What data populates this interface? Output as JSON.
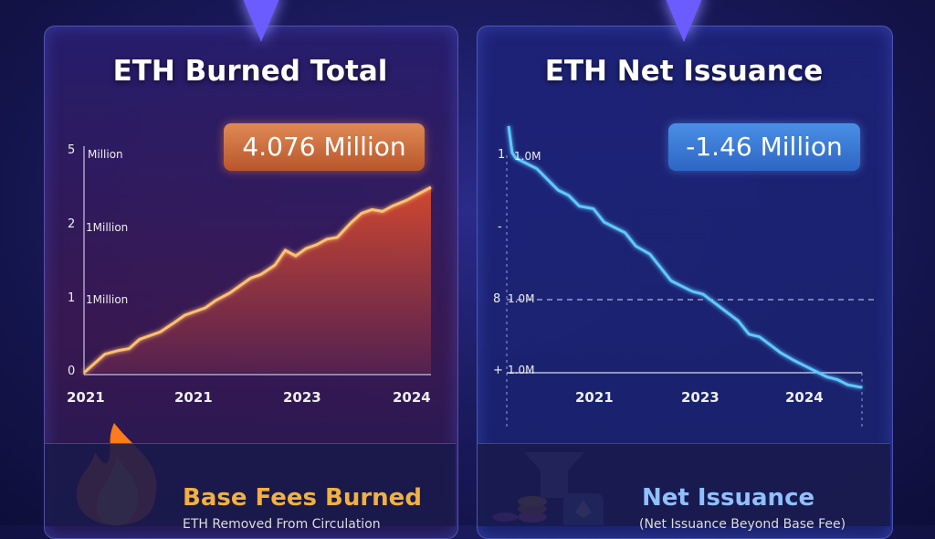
{
  "chart_data": [
    {
      "type": "area",
      "title": "ETH Burned Total",
      "highlight_value": "4.076 Million",
      "y_tick_labels": [
        {
          "num": "5",
          "text": "Million"
        },
        {
          "num": "2",
          "text": "1Million"
        },
        {
          "num": "1",
          "text": "1Million"
        },
        {
          "num": "0",
          "text": ""
        }
      ],
      "x_tick_labels": [
        "2021",
        "2021",
        "2023",
        "2024"
      ],
      "x": [
        0,
        0.03,
        0.06,
        0.1,
        0.13,
        0.16,
        0.19,
        0.22,
        0.26,
        0.29,
        0.32,
        0.35,
        0.38,
        0.42,
        0.45,
        0.48,
        0.51,
        0.55,
        0.58,
        0.61,
        0.64,
        0.67,
        0.7,
        0.73,
        0.77,
        0.8,
        0.83,
        0.86,
        0.89,
        0.93,
        0.96,
        1.0
      ],
      "values": [
        0,
        0.05,
        0.1,
        0.12,
        0.13,
        0.18,
        0.2,
        0.22,
        0.27,
        0.31,
        0.33,
        0.35,
        0.39,
        0.43,
        0.47,
        0.51,
        0.53,
        0.58,
        0.66,
        0.63,
        0.67,
        0.69,
        0.72,
        0.73,
        0.81,
        0.86,
        0.88,
        0.87,
        0.9,
        0.93,
        0.96,
        1.0
      ],
      "colors": {
        "line": "#ffc070",
        "area_top": "#d94a2c",
        "area_bottom": "#5a2350"
      }
    },
    {
      "type": "line",
      "title": "ETH Net Issuance",
      "highlight_value": "-1.46 Million",
      "y_tick_labels": [
        {
          "num": "1",
          "text": "1.0M"
        },
        {
          "num": "-",
          "text": ""
        },
        {
          "num": "8",
          "text": "1.0M"
        },
        {
          "num": "+",
          "text": "1.0M"
        }
      ],
      "x_tick_labels": [
        "2021",
        "2023",
        "2024"
      ],
      "x": [
        0,
        0.01,
        0.02,
        0.05,
        0.08,
        0.11,
        0.14,
        0.17,
        0.2,
        0.24,
        0.27,
        0.3,
        0.33,
        0.36,
        0.4,
        0.43,
        0.46,
        0.49,
        0.52,
        0.55,
        0.59,
        0.62,
        0.65,
        0.68,
        0.71,
        0.74,
        0.77,
        0.81,
        0.84,
        0.87,
        0.9,
        0.93,
        0.96,
        1.0
      ],
      "values": [
        1.0,
        0.9,
        0.88,
        0.86,
        0.84,
        0.8,
        0.76,
        0.74,
        0.7,
        0.69,
        0.64,
        0.62,
        0.6,
        0.55,
        0.52,
        0.47,
        0.42,
        0.4,
        0.38,
        0.37,
        0.33,
        0.3,
        0.27,
        0.22,
        0.21,
        0.18,
        0.15,
        0.12,
        0.1,
        0.08,
        0.06,
        0.05,
        0.03,
        0.02
      ],
      "colors": {
        "line": "#5fc8ff",
        "glow": "#2f7dff"
      }
    }
  ],
  "footer": {
    "left": {
      "title": "Base Fees Burned",
      "subtitle": "ETH Removed From Circulation"
    },
    "right": {
      "title": "Net Issuance",
      "subtitle": "(Net Issuance Beyond Base Fee)"
    }
  }
}
